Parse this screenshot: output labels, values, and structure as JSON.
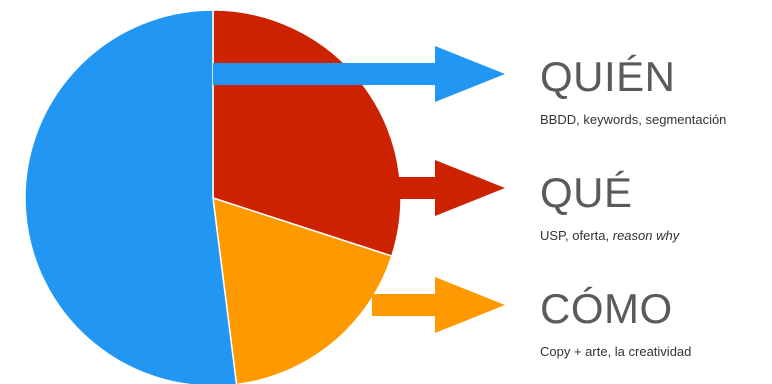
{
  "colors": {
    "blue": "#2196F3",
    "red": "#CC2200",
    "orange": "#FF9900",
    "heading_text": "#5a5a5a",
    "desc_text": "#333333"
  },
  "chart_data": {
    "type": "pie",
    "title": "",
    "slices": [
      {
        "name": "QUIÉN",
        "value": 52,
        "color": "#2196F3"
      },
      {
        "name": "QUÉ",
        "value": 30,
        "color": "#CC2200"
      },
      {
        "name": "CÓMO",
        "value": 18,
        "color": "#FF9900"
      }
    ],
    "annotations": [
      {
        "heading": "QUIÉN",
        "desc": "BBDD, keywords, segmentación",
        "desc_italic": "",
        "arrow_color": "#2196F3"
      },
      {
        "heading": "QUÉ",
        "desc": "USP, oferta, ",
        "desc_italic": "reason why",
        "arrow_color": "#CC2200"
      },
      {
        "heading": "CÓMO",
        "desc": "Copy + arte, la creatividad",
        "desc_italic": "",
        "arrow_color": "#FF9900"
      }
    ]
  }
}
